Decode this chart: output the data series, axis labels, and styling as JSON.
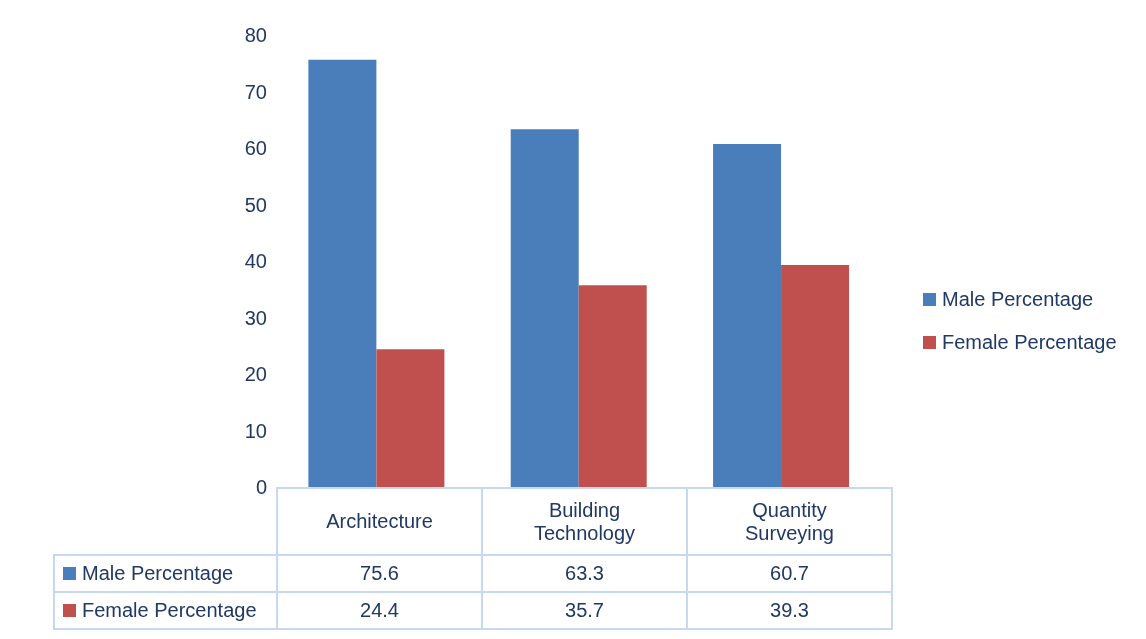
{
  "chart_data": {
    "type": "bar",
    "categories": [
      "Architecture",
      "Building Technology",
      "Quantity Surveying"
    ],
    "series": [
      {
        "name": "Male Percentage",
        "color": "#4a7ebb",
        "values": [
          75.6,
          63.3,
          60.7
        ]
      },
      {
        "name": "Female Percentage",
        "color": "#c0504d",
        "values": [
          24.4,
          35.7,
          39.3
        ]
      }
    ],
    "ylim": [
      0,
      80
    ],
    "yticks": [
      0,
      10,
      20,
      30,
      40,
      50,
      60,
      70,
      80
    ],
    "legend": "right",
    "data_labels": true
  }
}
